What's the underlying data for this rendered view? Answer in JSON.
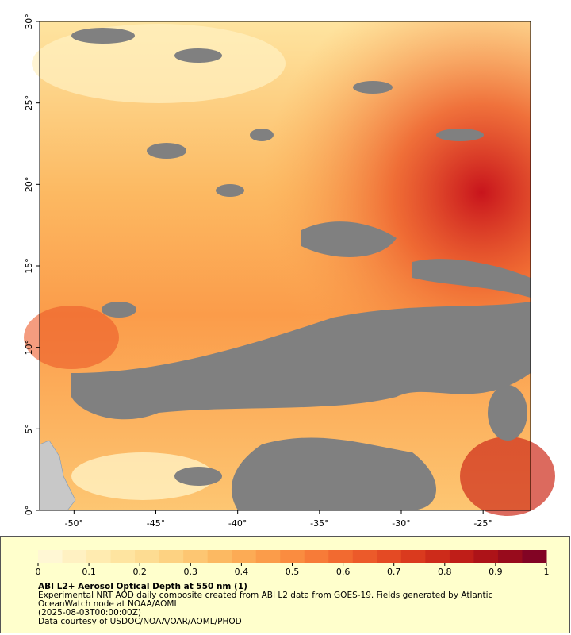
{
  "map": {
    "xlim": [
      -52.1,
      -22.1
    ],
    "ylim": [
      0,
      30
    ],
    "xticks": [
      {
        "value": -50,
        "label": "-50°"
      },
      {
        "value": -45,
        "label": "-45°"
      },
      {
        "value": -40,
        "label": "-40°"
      },
      {
        "value": -35,
        "label": "-35°"
      },
      {
        "value": -30,
        "label": "-30°"
      },
      {
        "value": -25,
        "label": "-25°"
      }
    ],
    "yticks": [
      {
        "value": 0,
        "label": "0°"
      },
      {
        "value": 5,
        "label": "5°"
      },
      {
        "value": 10,
        "label": "10°"
      },
      {
        "value": 15,
        "label": "15°"
      },
      {
        "value": 20,
        "label": "20°"
      },
      {
        "value": 25,
        "label": "25°"
      },
      {
        "value": 30,
        "label": "30°"
      }
    ]
  },
  "colorbar": {
    "range": [
      0,
      1
    ],
    "ticks": [
      0,
      0.1,
      0.2,
      0.3,
      0.4,
      0.5,
      0.6,
      0.7,
      0.8,
      0.9,
      1
    ],
    "colors": [
      "#fff7d4",
      "#fff1c2",
      "#ffebb0",
      "#fee4a0",
      "#fddc92",
      "#fdd282",
      "#fdc672",
      "#fcb962",
      "#fcab55",
      "#fb9c4a",
      "#fa8c40",
      "#f77b38",
      "#f26a30",
      "#ec5a2a",
      "#e44a24",
      "#da3a1e",
      "#cd2b1a",
      "#bf1e18",
      "#ad1318",
      "#980b1c",
      "#820424"
    ]
  },
  "legend": {
    "title": "ABI L2+ Aerosol Optical Depth at 550 nm (1)",
    "lines": [
      "Experimental NRT AOD daily composite created from ABI L2 data from GOES-19. Fields generated by Atlantic OceanWatch node at NOAA/AOML",
      "(2025-08-03T00:00:00Z)",
      "Data courtesy of USDOC/NOAA/OAR/AOML/PHOD"
    ]
  }
}
